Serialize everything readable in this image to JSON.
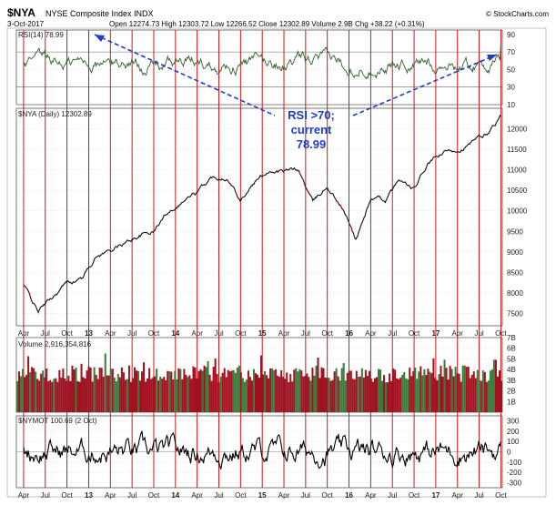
{
  "header": {
    "symbol": "$NYA",
    "name": "NYSE Composite Index INDX",
    "date": "3-Oct-2017",
    "ohlc": "Open 12274.73  High 12303.72  Low 12266.52  Close 12302.89  Volume 2.9B  Chg +38.22 (+0.31%)",
    "credit": "© StockCharts.com"
  },
  "colors": {
    "price_line": "#111111",
    "price_down": "#cc0000",
    "vline": "#cc0000",
    "rsi_line": "#2e5e2e",
    "volume_up": "#3a7a3a",
    "volume_down": "#a01020",
    "annotation": "#1f3cc8",
    "panel_bg": "#f6f6f2",
    "grid": "#c8c8c8"
  },
  "chart_data": [
    {
      "type": "line",
      "panel": "rsi",
      "label": "RSI(14) 78.99",
      "ylim": [
        10,
        95
      ],
      "yticks": [
        90,
        70,
        50,
        30,
        10
      ],
      "reference_lines": [
        70,
        30
      ],
      "last_value": 78.99
    },
    {
      "type": "line",
      "panel": "price",
      "label": "$NYA (Daily) 12302.89",
      "ylim": [
        7200,
        12500
      ],
      "yticks": [
        12000,
        11500,
        11000,
        10500,
        10000,
        9500,
        9000,
        8500,
        8000,
        7500
      ],
      "series": [
        {
          "x": [
            "2012-04",
            "2012-06",
            "2012-08",
            "2012-10",
            "2012-12",
            "2013-02",
            "2013-04",
            "2013-06",
            "2013-08",
            "2013-10",
            "2013-12",
            "2014-02",
            "2014-04",
            "2014-06",
            "2014-08",
            "2014-10",
            "2014-12",
            "2015-02",
            "2015-04",
            "2015-06",
            "2015-08",
            "2015-10",
            "2015-12",
            "2016-02",
            "2016-04",
            "2016-06",
            "2016-08",
            "2016-10",
            "2016-12",
            "2017-02",
            "2017-04",
            "2017-06",
            "2017-08",
            "2017-10"
          ],
          "values": [
            8200,
            7550,
            7900,
            8250,
            8350,
            8900,
            9050,
            9200,
            9400,
            9500,
            10000,
            10250,
            10450,
            10800,
            10850,
            10300,
            10700,
            11000,
            10950,
            11000,
            10200,
            10600,
            10100,
            9300,
            10300,
            10250,
            10750,
            10500,
            11150,
            11400,
            11500,
            11650,
            11850,
            12302.89
          ]
        }
      ],
      "annotation": [
        "RSI >70;",
        "current",
        "78.99"
      ]
    },
    {
      "type": "bar",
      "panel": "volume",
      "label": "Volume 2,916,354,816",
      "ylim": [
        0,
        7
      ],
      "yticks": [
        "7B",
        "6B",
        "5B",
        "4B",
        "3B",
        "2B",
        "1B"
      ],
      "last_value": 2916354816
    },
    {
      "type": "line",
      "panel": "nymot",
      "label": "$NYMOT 100.69 (2 Oct)",
      "ylim": [
        -350,
        350
      ],
      "yticks": [
        300,
        200,
        100,
        0,
        -100,
        -200,
        -300
      ],
      "last_value": 100.69
    }
  ],
  "x_axis": {
    "labels": [
      "Apr",
      "Jul",
      "Oct",
      "13",
      "Apr",
      "Jul",
      "Oct",
      "14",
      "Apr",
      "Jul",
      "Oct",
      "15",
      "Apr",
      "Jul",
      "Oct",
      "16",
      "Apr",
      "Jul",
      "Oct",
      "17",
      "Apr",
      "Jul",
      "Oct"
    ]
  }
}
